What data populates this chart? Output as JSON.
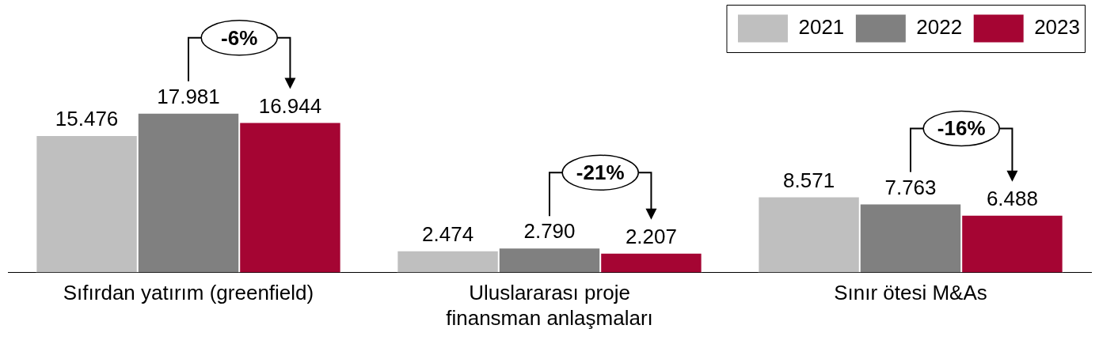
{
  "chart_data": {
    "type": "bar",
    "categories": [
      "Sıfırdan yatırım (greenfield)",
      "Uluslararası proje finansman anlaşmaları",
      "Sınır ötesi M&As"
    ],
    "series": [
      {
        "name": "2021",
        "color": "#bfbfbf",
        "values": [
          15476,
          2474,
          8571
        ],
        "value_labels": [
          "15.476",
          "2.474",
          "8.571"
        ]
      },
      {
        "name": "2022",
        "color": "#808080",
        "values": [
          17981,
          2790,
          7763
        ],
        "value_labels": [
          "17.981",
          "2.790",
          "7.763"
        ]
      },
      {
        "name": "2023",
        "color": "#a50533",
        "values": [
          16944,
          2207,
          6488
        ],
        "value_labels": [
          "16.944",
          "2.207",
          "6.488"
        ]
      }
    ],
    "tick_labels": "x",
    "grid": false,
    "legend": "top right",
    "annotations": [
      "-6%",
      "-21%",
      "-16%"
    ]
  }
}
